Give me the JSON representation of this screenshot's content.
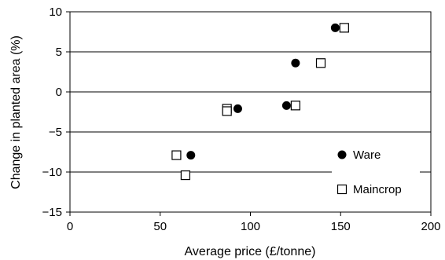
{
  "chart_data": {
    "type": "scatter",
    "xlabel": "Average price (£/tonne)",
    "ylabel": "Change in planted area (%)",
    "xlim": [
      0,
      200
    ],
    "ylim": [
      -15,
      10
    ],
    "xticks": [
      0,
      50,
      100,
      150,
      200
    ],
    "yticks": [
      10,
      5,
      0,
      -5,
      -10,
      -15
    ],
    "grid": "horizontal",
    "legend_position": "bottom-right",
    "series": [
      {
        "name": "Ware",
        "marker": "filled-circle",
        "color": "#000000",
        "points": [
          {
            "x": 67,
            "y": -7.9
          },
          {
            "x": 93,
            "y": -2.1
          },
          {
            "x": 120,
            "y": -1.7
          },
          {
            "x": 125,
            "y": 3.6
          },
          {
            "x": 147,
            "y": 8.0
          }
        ]
      },
      {
        "name": "Maincrop",
        "marker": "open-square",
        "color": "#000000",
        "points": [
          {
            "x": 59,
            "y": -7.9
          },
          {
            "x": 64,
            "y": -10.4
          },
          {
            "x": 87,
            "y": -2.1
          },
          {
            "x": 87,
            "y": -2.4
          },
          {
            "x": 125,
            "y": -1.7
          },
          {
            "x": 139,
            "y": 3.6
          },
          {
            "x": 152,
            "y": 8.0
          }
        ]
      }
    ]
  }
}
